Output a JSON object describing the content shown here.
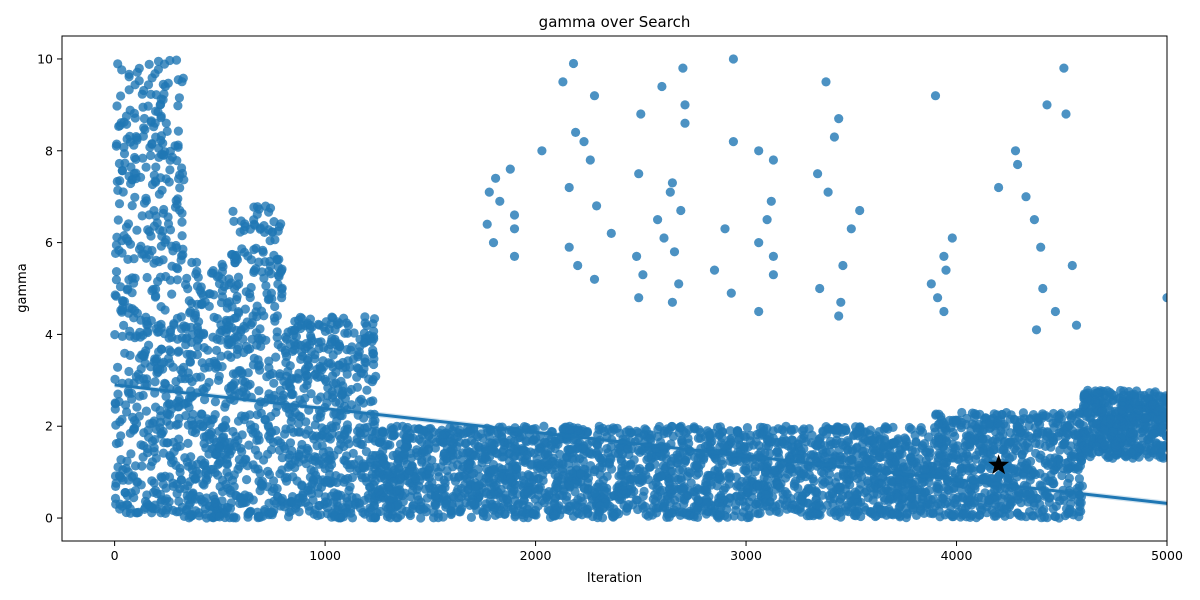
{
  "chart_data": {
    "type": "scatter",
    "title": "gamma over Search",
    "xlabel": "Iteration",
    "ylabel": "gamma",
    "xlim": [
      -250,
      5000
    ],
    "ylim": [
      -0.5,
      10.5
    ],
    "xticks": [
      0,
      1000,
      2000,
      3000,
      4000,
      5000
    ],
    "xtick_labels": [
      "0",
      "1000",
      "2000",
      "3000",
      "4000",
      "5000"
    ],
    "yticks": [
      0,
      2,
      4,
      6,
      8,
      10
    ],
    "ytick_labels": [
      "0",
      "2",
      "4",
      "6",
      "8",
      "10"
    ],
    "grid": false,
    "point_color": "#1f77b4",
    "best_point": {
      "x": 4200,
      "y": 1.15,
      "marker": "star",
      "color": "#000000"
    },
    "regression_line": {
      "x": [
        0,
        5000
      ],
      "y": [
        2.9,
        0.32
      ],
      "color": "#1f77b4"
    },
    "density_regions": [
      {
        "x_start": 0,
        "x_end": 330,
        "y_min": 0.1,
        "y_max": 10.0,
        "count": 520
      },
      {
        "x_start": 330,
        "x_end": 550,
        "y_min": 0.0,
        "y_max": 5.6,
        "count": 300
      },
      {
        "x_start": 550,
        "x_end": 800,
        "y_min": 0.0,
        "y_max": 6.8,
        "count": 320
      },
      {
        "x_start": 800,
        "x_end": 1250,
        "y_min": 0.0,
        "y_max": 4.4,
        "count": 520
      },
      {
        "x_start": 1250,
        "x_end": 3900,
        "y_min": 0.0,
        "y_max": 2.0,
        "count": 2200
      },
      {
        "x_start": 3900,
        "x_end": 4600,
        "y_min": 0.0,
        "y_max": 2.3,
        "count": 650
      },
      {
        "x_start": 4600,
        "x_end": 5000,
        "y_min": 1.3,
        "y_max": 2.8,
        "count": 450
      }
    ],
    "sparse_points": [
      [
        1780,
        7.1
      ],
      [
        1810,
        7.4
      ],
      [
        1880,
        7.6
      ],
      [
        1770,
        6.4
      ],
      [
        1800,
        6.0
      ],
      [
        1900,
        6.6
      ],
      [
        1900,
        6.3
      ],
      [
        1900,
        5.7
      ],
      [
        1830,
        6.9
      ],
      [
        2030,
        8.0
      ],
      [
        2130,
        9.5
      ],
      [
        2180,
        9.9
      ],
      [
        2190,
        8.4
      ],
      [
        2230,
        8.2
      ],
      [
        2260,
        7.8
      ],
      [
        2280,
        9.2
      ],
      [
        2160,
        7.2
      ],
      [
        2160,
        5.9
      ],
      [
        2200,
        5.5
      ],
      [
        2280,
        5.2
      ],
      [
        2290,
        6.8
      ],
      [
        2360,
        6.2
      ],
      [
        2480,
        5.7
      ],
      [
        2500,
        8.8
      ],
      [
        2490,
        7.5
      ],
      [
        2510,
        5.3
      ],
      [
        2490,
        4.8
      ],
      [
        2580,
        6.5
      ],
      [
        2610,
        6.1
      ],
      [
        2600,
        9.4
      ],
      [
        2640,
        7.1
      ],
      [
        2650,
        7.3
      ],
      [
        2650,
        4.7
      ],
      [
        2660,
        5.8
      ],
      [
        2680,
        5.1
      ],
      [
        2690,
        6.7
      ],
      [
        2700,
        9.8
      ],
      [
        2710,
        9.0
      ],
      [
        2710,
        8.6
      ],
      [
        2850,
        5.4
      ],
      [
        2900,
        6.3
      ],
      [
        2930,
        4.9
      ],
      [
        2940,
        8.2
      ],
      [
        2940,
        10.0
      ],
      [
        3060,
        8.0
      ],
      [
        3060,
        6.0
      ],
      [
        3060,
        4.5
      ],
      [
        3100,
        6.5
      ],
      [
        3120,
        6.9
      ],
      [
        3130,
        7.8
      ],
      [
        3130,
        5.7
      ],
      [
        3130,
        5.3
      ],
      [
        3340,
        7.5
      ],
      [
        3350,
        5.0
      ],
      [
        3380,
        9.5
      ],
      [
        3390,
        7.1
      ],
      [
        3420,
        8.3
      ],
      [
        3440,
        8.7
      ],
      [
        3440,
        4.4
      ],
      [
        3450,
        4.7
      ],
      [
        3460,
        5.5
      ],
      [
        3500,
        6.3
      ],
      [
        3540,
        6.7
      ],
      [
        3880,
        5.1
      ],
      [
        3900,
        9.2
      ],
      [
        3910,
        4.8
      ],
      [
        3940,
        5.7
      ],
      [
        3950,
        5.4
      ],
      [
        3940,
        4.5
      ],
      [
        3980,
        6.1
      ],
      [
        4200,
        7.2
      ],
      [
        4280,
        8.0
      ],
      [
        4290,
        7.7
      ],
      [
        4330,
        7.0
      ],
      [
        4370,
        6.5
      ],
      [
        4380,
        4.1
      ],
      [
        4400,
        5.9
      ],
      [
        4410,
        5.0
      ],
      [
        4430,
        9.0
      ],
      [
        4470,
        4.5
      ],
      [
        4510,
        9.8
      ],
      [
        4520,
        8.8
      ],
      [
        4550,
        5.5
      ],
      [
        4570,
        4.2
      ],
      [
        5000,
        4.8
      ]
    ]
  }
}
